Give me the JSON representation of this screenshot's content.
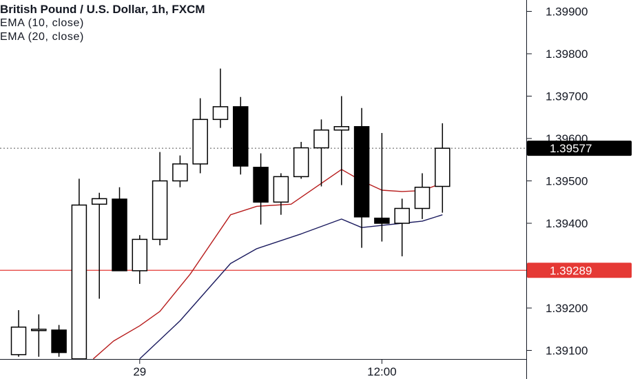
{
  "header": {
    "title": "British Pound / U.S. Dollar, 1h, FXCM",
    "indicators": [
      "EMA (10, close)",
      "EMA (20, close)"
    ]
  },
  "colors": {
    "background": "#ffffff",
    "candle_stroke": "#000000",
    "bull_fill": "#ffffff",
    "bear_fill": "#000000",
    "ema10": "#b71c1c",
    "ema20": "#1a1a5e",
    "hline": "#e53935",
    "last_price_tag": "#000000",
    "text": "#131722"
  },
  "chart_data": {
    "type": "candlestick",
    "title": "British Pound / U.S. Dollar, 1h, FXCM",
    "ylim": [
      1.3905,
      1.3993
    ],
    "y_ticks": [
      "1.39100",
      "1.39200",
      "1.39400",
      "1.39500",
      "1.39600",
      "1.39700",
      "1.39800",
      "1.39900"
    ],
    "x_ticks": [
      {
        "label": "29",
        "index": 6
      },
      {
        "label": "12:00",
        "index": 18
      }
    ],
    "candles": [
      {
        "o": 1.3909,
        "h": 1.39195,
        "l": 1.39085,
        "c": 1.39155
      },
      {
        "o": 1.3915,
        "h": 1.39185,
        "l": 1.39085,
        "c": 1.3915
      },
      {
        "o": 1.39148,
        "h": 1.3916,
        "l": 1.39085,
        "c": 1.39095
      },
      {
        "o": 1.3908,
        "h": 1.39505,
        "l": 1.3908,
        "c": 1.39443
      },
      {
        "o": 1.39445,
        "h": 1.39472,
        "l": 1.39222,
        "c": 1.39458
      },
      {
        "o": 1.39457,
        "h": 1.39485,
        "l": 1.39288,
        "c": 1.39288
      },
      {
        "o": 1.39288,
        "h": 1.39372,
        "l": 1.39257,
        "c": 1.39362
      },
      {
        "o": 1.39362,
        "h": 1.39568,
        "l": 1.39348,
        "c": 1.395
      },
      {
        "o": 1.395,
        "h": 1.3956,
        "l": 1.39485,
        "c": 1.3954
      },
      {
        "o": 1.3954,
        "h": 1.39695,
        "l": 1.39518,
        "c": 1.39645
      },
      {
        "o": 1.39645,
        "h": 1.39765,
        "l": 1.39625,
        "c": 1.39675
      },
      {
        "o": 1.39675,
        "h": 1.39698,
        "l": 1.39515,
        "c": 1.39535
      },
      {
        "o": 1.39532,
        "h": 1.39565,
        "l": 1.39397,
        "c": 1.3945
      },
      {
        "o": 1.3945,
        "h": 1.39518,
        "l": 1.3942,
        "c": 1.3951
      },
      {
        "o": 1.3951,
        "h": 1.39592,
        "l": 1.39505,
        "c": 1.39578
      },
      {
        "o": 1.39578,
        "h": 1.39645,
        "l": 1.39487,
        "c": 1.3962
      },
      {
        "o": 1.3962,
        "h": 1.397,
        "l": 1.3949,
        "c": 1.39628
      },
      {
        "o": 1.39628,
        "h": 1.39672,
        "l": 1.39342,
        "c": 1.39415
      },
      {
        "o": 1.39412,
        "h": 1.39613,
        "l": 1.39357,
        "c": 1.394
      },
      {
        "o": 1.394,
        "h": 1.39458,
        "l": 1.39322,
        "c": 1.39435
      },
      {
        "o": 1.39435,
        "h": 1.39518,
        "l": 1.3941,
        "c": 1.39485
      },
      {
        "o": 1.39487,
        "h": 1.39636,
        "l": 1.39425,
        "c": 1.39577
      }
    ],
    "series": [
      {
        "name": "EMA (10, close)",
        "points": [
          [
            3.7,
            1.3908
          ],
          [
            4.7,
            1.39122
          ],
          [
            6.0,
            1.39158
          ],
          [
            7.0,
            1.39192
          ],
          [
            8.5,
            1.3928
          ],
          [
            10.5,
            1.3942
          ],
          [
            11.8,
            1.3944
          ],
          [
            13.5,
            1.39445
          ],
          [
            16.0,
            1.39527
          ],
          [
            17.0,
            1.395
          ],
          [
            18.0,
            1.39478
          ],
          [
            19.0,
            1.39475
          ],
          [
            20.0,
            1.39477
          ],
          [
            21.0,
            1.39495
          ]
        ]
      },
      {
        "name": "EMA (20, close)",
        "points": [
          [
            6.0,
            1.3908
          ],
          [
            8.0,
            1.3917
          ],
          [
            10.5,
            1.39305
          ],
          [
            11.8,
            1.3934
          ],
          [
            14.0,
            1.39375
          ],
          [
            16.0,
            1.3941
          ],
          [
            17.0,
            1.3939
          ],
          [
            18.0,
            1.39395
          ],
          [
            19.0,
            1.394
          ],
          [
            20.0,
            1.39405
          ],
          [
            21.0,
            1.3942
          ]
        ]
      }
    ],
    "horizontal_line": 1.39289,
    "price_tags": [
      {
        "value": "1.39577",
        "price": 1.39577,
        "style": "black"
      },
      {
        "value": "1.39289",
        "price": 1.39289,
        "style": "red"
      }
    ]
  }
}
